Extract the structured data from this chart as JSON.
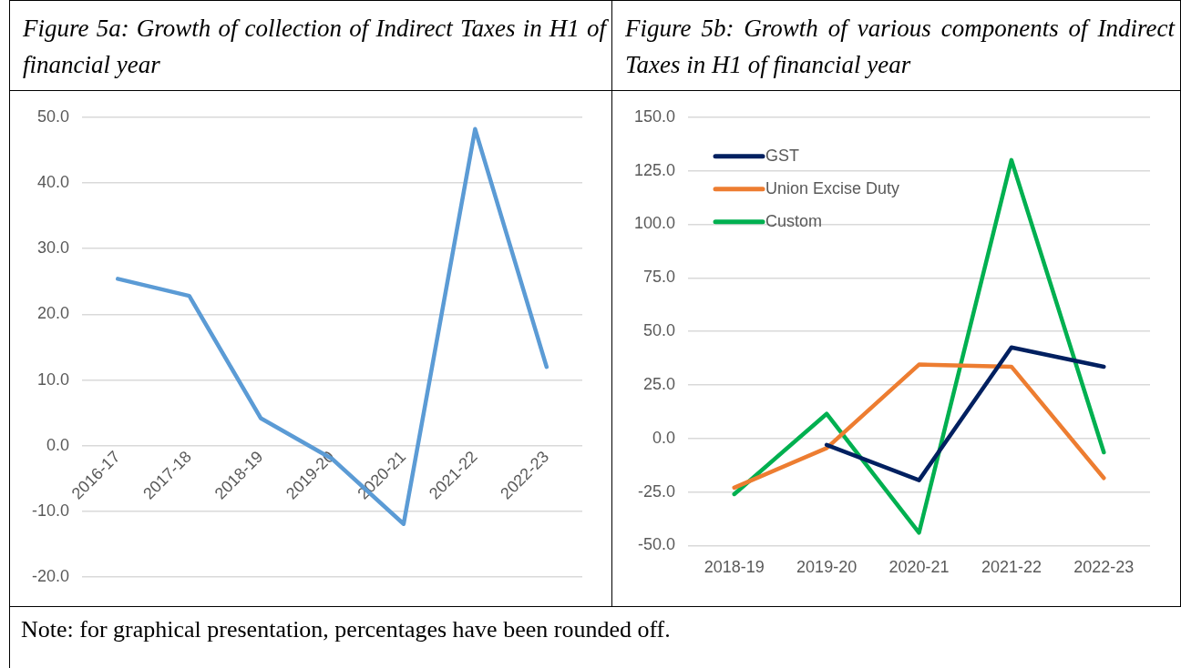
{
  "chart_data": [
    {
      "type": "line",
      "title": "Figure 5a: Growth of collection of Indirect Taxes in H1 of financial year",
      "categories": [
        "2016-17",
        "2017-18",
        "2018-19",
        "2019-20",
        "2020-21",
        "2021-22",
        "2022-23"
      ],
      "values": [
        25.4,
        22.8,
        4.2,
        -2.0,
        -11.9,
        48.2,
        12.0
      ],
      "color": "#5b9bd5",
      "ylim": [
        -20,
        50
      ],
      "yticks": [
        {
          "value": -20,
          "label": "-20.0"
        },
        {
          "value": -10,
          "label": "-10.0"
        },
        {
          "value": 0,
          "label": "0.0"
        },
        {
          "value": 10,
          "label": "10.0"
        },
        {
          "value": 20,
          "label": "20.0"
        },
        {
          "value": 30,
          "label": "30.0"
        },
        {
          "value": 40,
          "label": "40.0"
        },
        {
          "value": 50,
          "label": "50.0"
        }
      ],
      "grid": "y",
      "marker": "none",
      "legend": false,
      "annotations": [
        "Note: for graphical presentation, percentages have been rounded off."
      ]
    },
    {
      "type": "line",
      "title": "Figure 5b: Growth of various components of Indirect Taxes in H1 of financial year",
      "categories": [
        "2018-19",
        "2019-20",
        "2020-21",
        "2021-22",
        "2022-23"
      ],
      "series": [
        {
          "name": "GST",
          "color": "#002060",
          "values": [
            null,
            -3.0,
            -19.5,
            42.5,
            33.5
          ]
        },
        {
          "name": "Union Excise Duty",
          "color": "#ed7d31",
          "values": [
            -23.0,
            -4.5,
            34.5,
            33.5,
            -18.5
          ]
        },
        {
          "name": "Custom",
          "color": "#00b050",
          "values": [
            -26.0,
            11.5,
            -44.0,
            130.0,
            -6.5
          ]
        }
      ],
      "ylim": [
        -50,
        150
      ],
      "yticks": [
        {
          "value": -50,
          "label": "-50.0"
        },
        {
          "value": -25,
          "label": "-25.0"
        },
        {
          "value": 0,
          "label": "0.0"
        },
        {
          "value": 25,
          "label": "25.0"
        },
        {
          "value": 50,
          "label": "50.0"
        },
        {
          "value": 75,
          "label": "75.0"
        },
        {
          "value": 100,
          "label": "100.0"
        },
        {
          "value": 125,
          "label": "125.0"
        },
        {
          "value": 150,
          "label": "150.0"
        }
      ],
      "grid": "y",
      "marker": "none",
      "legend": "top left"
    }
  ]
}
